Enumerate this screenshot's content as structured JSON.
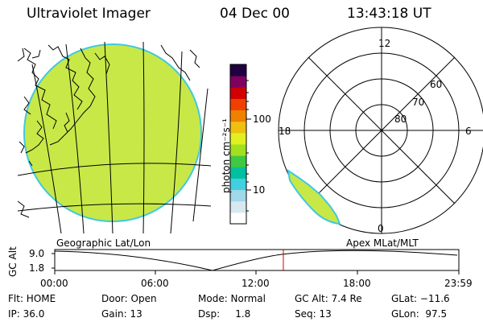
{
  "header": {
    "title": "Ultraviolet Imager",
    "date": "04 Dec 00",
    "time": "13:43:18 UT"
  },
  "colorbar": {
    "tick_labels": [
      "100",
      "10"
    ],
    "unit_label": "photon cm⁻²s⁻¹",
    "colors": [
      "#ffffff",
      "#d8e8f0",
      "#a0d8e8",
      "#40d0e0",
      "#00c0a0",
      "#40c840",
      "#a0e020",
      "#e0f020",
      "#f0c010",
      "#f08000",
      "#f04000",
      "#d00000",
      "#800060",
      "#200040"
    ]
  },
  "polar_plot": {
    "mlt_labels": {
      "top": "12",
      "left": "18",
      "right": "6",
      "bottom": "0"
    },
    "lat_labels": [
      "60",
      "70",
      "80"
    ]
  },
  "timeline": {
    "left_label": "Geographic Lat/Lon",
    "right_label": "Apex MLat/MLT",
    "axis_title": "GC Alt",
    "y_ticks": [
      "9.0",
      "1.8"
    ],
    "x_ticks": [
      "00:00",
      "06:00",
      "12:00",
      "18:00",
      "23:59"
    ],
    "current_time_color": "#d00000"
  },
  "info": {
    "flt": "Flt: HOME",
    "ip": "IP: 36.0",
    "door": "Door: Open",
    "gain": "Gain: 13",
    "mode": "Mode: Normal",
    "dsp": "Dsp:     1.8",
    "gc_alt": "GC Alt: 7.4 Re",
    "seq": "Seq: 13",
    "glat": "GLat: −11.6",
    "glon": "GLon:  97.5"
  },
  "colors": {
    "image_fill": "#c8e848",
    "image_edge": "#40c8e0"
  }
}
